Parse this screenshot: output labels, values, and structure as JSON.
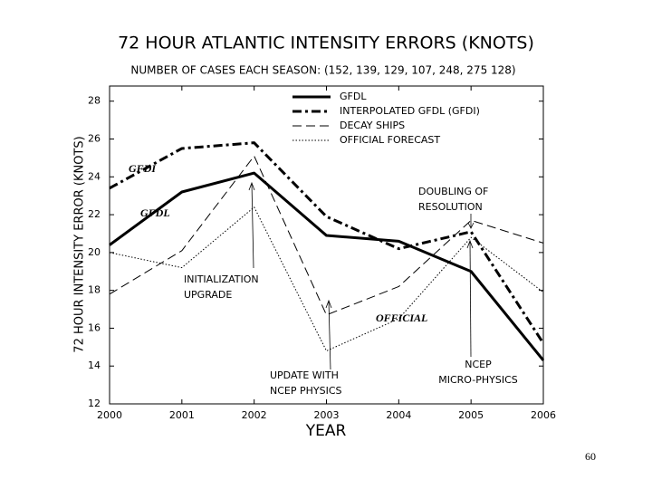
{
  "chart_data": {
    "type": "line",
    "title": "72 HOUR ATLANTIC INTENSITY ERRORS (KNOTS)",
    "subtitle": "NUMBER OF CASES EACH SEASON: (152, 139, 129, 107, 248, 275  128)",
    "xlabel": "YEAR",
    "ylabel": "72 HOUR INTENSITY ERROR (KNOTS)",
    "x": [
      2000,
      2001,
      2002,
      2003,
      2004,
      2005,
      2006
    ],
    "xlim": [
      2000,
      2006
    ],
    "xticks": [
      2000,
      2001,
      2002,
      2003,
      2004,
      2005,
      2006
    ],
    "ylim": [
      12,
      28.8
    ],
    "yticks": [
      12,
      14,
      16,
      18,
      20,
      22,
      24,
      26,
      28
    ],
    "grid": false,
    "legend": "top",
    "series": [
      {
        "name": "GFDL",
        "color": "#000000",
        "dash": "solid",
        "values": [
          20.4,
          23.2,
          24.2,
          20.9,
          20.6,
          19.0,
          14.3
        ]
      },
      {
        "name": "INTERPOLATED GFDL (GFDI)",
        "color": "#000000",
        "dash": "dashdot",
        "values": [
          23.4,
          25.5,
          25.8,
          21.9,
          20.2,
          21.1,
          15.2
        ]
      },
      {
        "name": "DECAY SHIPS",
        "color": "#000000",
        "dash": "dashed",
        "values": [
          17.8,
          20.1,
          25.1,
          16.7,
          18.2,
          21.7,
          20.5
        ]
      },
      {
        "name": "OFFICIAL FORECAST",
        "color": "#000000",
        "dash": "dotted",
        "values": [
          20.0,
          19.2,
          22.4,
          14.8,
          16.5,
          20.8,
          17.9
        ]
      }
    ],
    "annotations": [
      {
        "lines": [
          "GFDI"
        ]
      },
      {
        "lines": [
          "GFDL"
        ]
      },
      {
        "lines": [
          "OFFICIAL"
        ]
      },
      {
        "lines": [
          "DOUBLING OF",
          "RESOLUTION"
        ]
      },
      {
        "lines": [
          "INITIALIZATION",
          "UPGRADE"
        ]
      },
      {
        "lines": [
          "UPDATE WITH",
          "NCEP PHYSICS"
        ]
      },
      {
        "lines": [
          "NCEP",
          "MICRO-PHYSICS"
        ]
      }
    ]
  },
  "page_number": "60"
}
